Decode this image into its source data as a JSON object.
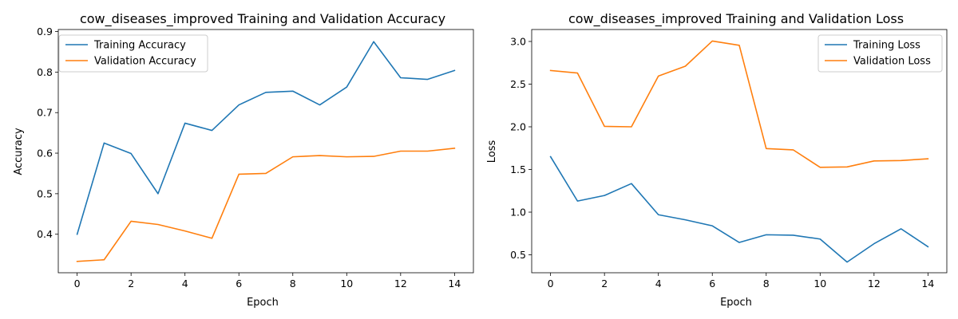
{
  "chart_data": [
    {
      "type": "line",
      "title": "cow_diseases_improved Training and Validation Accuracy",
      "xlabel": "Epoch",
      "ylabel": "Accuracy",
      "x": [
        0,
        1,
        2,
        3,
        4,
        5,
        6,
        7,
        8,
        9,
        10,
        11,
        12,
        13,
        14
      ],
      "xlim": [
        -0.7,
        14.7
      ],
      "ylim": [
        0.305,
        0.905
      ],
      "xticks": [
        0,
        2,
        4,
        6,
        8,
        10,
        12,
        14
      ],
      "yticks": [
        0.4,
        0.5,
        0.6,
        0.7,
        0.8,
        0.9
      ],
      "yticklabels": [
        "0.4",
        "0.5",
        "0.6",
        "0.7",
        "0.8",
        "0.9"
      ],
      "grid": false,
      "legend": "top-left",
      "series": [
        {
          "name": "Training Accuracy",
          "color": "#1f77b4",
          "values": [
            0.4,
            0.625,
            0.599,
            0.5,
            0.674,
            0.656,
            0.719,
            0.75,
            0.753,
            0.719,
            0.763,
            0.875,
            0.786,
            0.782,
            0.804
          ]
        },
        {
          "name": "Validation Accuracy",
          "color": "#ff7f0e",
          "values": [
            0.333,
            0.337,
            0.432,
            0.424,
            0.408,
            0.39,
            0.548,
            0.55,
            0.591,
            0.594,
            0.591,
            0.592,
            0.605,
            0.605,
            0.612
          ]
        }
      ]
    },
    {
      "type": "line",
      "title": "cow_diseases_improved Training and Validation Loss",
      "xlabel": "Epoch",
      "ylabel": "Loss",
      "x": [
        0,
        1,
        2,
        3,
        4,
        5,
        6,
        7,
        8,
        9,
        10,
        11,
        12,
        13,
        14
      ],
      "xlim": [
        -0.7,
        14.7
      ],
      "ylim": [
        0.29,
        3.14
      ],
      "xticks": [
        0,
        2,
        4,
        6,
        8,
        10,
        12,
        14
      ],
      "yticks": [
        0.5,
        1.0,
        1.5,
        2.0,
        2.5,
        3.0
      ],
      "yticklabels": [
        "0.5",
        "1.0",
        "1.5",
        "2.0",
        "2.5",
        "3.0"
      ],
      "grid": false,
      "legend": "top-right",
      "series": [
        {
          "name": "Training Loss",
          "color": "#1f77b4",
          "values": [
            1.65,
            1.13,
            1.195,
            1.335,
            0.97,
            0.91,
            0.84,
            0.645,
            0.735,
            0.73,
            0.685,
            0.415,
            0.63,
            0.805,
            0.595
          ]
        },
        {
          "name": "Validation Loss",
          "color": "#ff7f0e",
          "values": [
            2.66,
            2.63,
            2.005,
            2.0,
            2.595,
            2.71,
            3.005,
            2.955,
            1.745,
            1.73,
            1.525,
            1.53,
            1.6,
            1.605,
            1.625
          ]
        }
      ]
    }
  ]
}
